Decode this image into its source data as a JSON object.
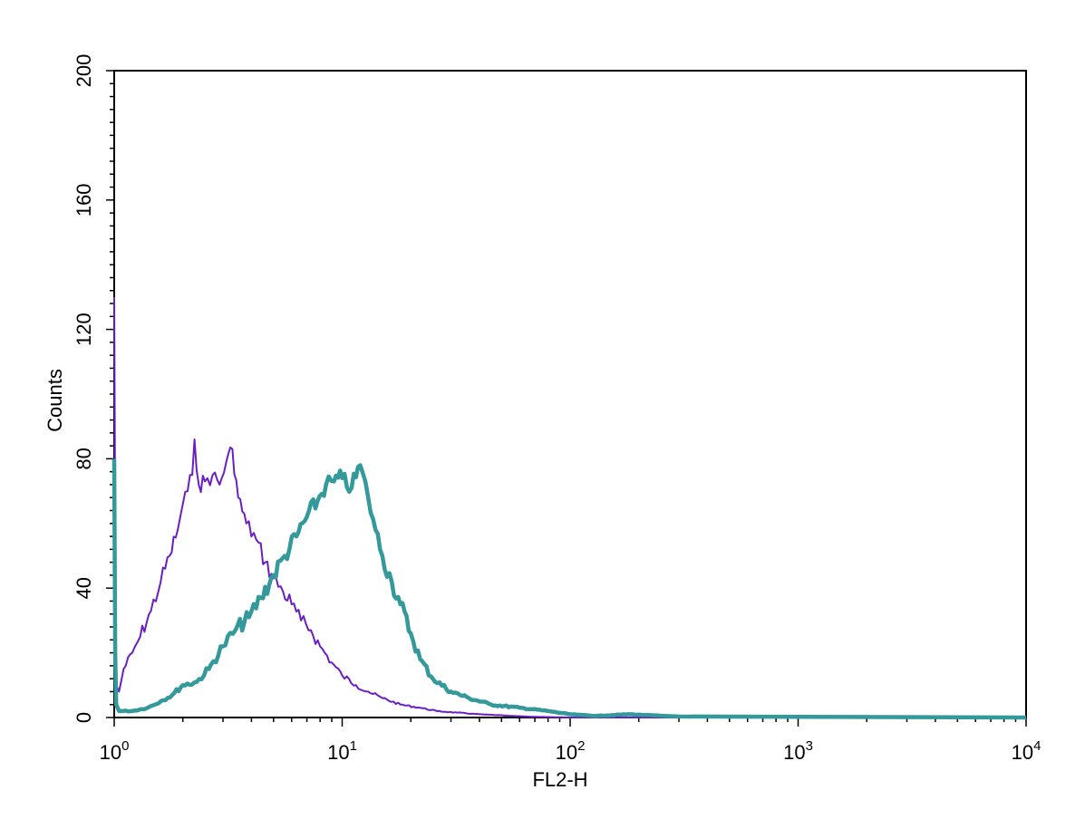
{
  "chart_data": {
    "type": "line",
    "title": "",
    "xlabel": "FL2-H",
    "ylabel": "Counts",
    "xscale": "log",
    "xlim": [
      1,
      10000
    ],
    "ylim": [
      0,
      200
    ],
    "grid": false,
    "x_ticks": [
      {
        "value": 1,
        "base": "10",
        "exp": "0"
      },
      {
        "value": 10,
        "base": "10",
        "exp": "1"
      },
      {
        "value": 100,
        "base": "10",
        "exp": "2"
      },
      {
        "value": 1000,
        "base": "10",
        "exp": "3"
      },
      {
        "value": 10000,
        "base": "10",
        "exp": "4"
      }
    ],
    "y_ticks": [
      {
        "value": 0,
        "label": "0"
      },
      {
        "value": 40,
        "label": "40"
      },
      {
        "value": 80,
        "label": "80"
      },
      {
        "value": 120,
        "label": "120"
      },
      {
        "value": 160,
        "label": "160"
      },
      {
        "value": 200,
        "label": "200"
      }
    ],
    "series": [
      {
        "color": "#6a1fc4",
        "stroke": "thin",
        "x": [
          1.0,
          1.01,
          1.02,
          1.05,
          1.1,
          1.2,
          1.3,
          1.45,
          1.6,
          1.75,
          1.9,
          2.0,
          2.1,
          2.2,
          2.25,
          2.35,
          2.5,
          2.7,
          2.9,
          3.1,
          3.3,
          3.5,
          3.8,
          4.2,
          4.6,
          5.0,
          5.5,
          6.0,
          6.6,
          7.3,
          8.0,
          9.0,
          10.0,
          11.5,
          13.0,
          15.0,
          18.0,
          22.0,
          26.0,
          32.0,
          40.0,
          55.0,
          70.0,
          100.0,
          10000.0
        ],
        "y": [
          130,
          60,
          10,
          8,
          15,
          20,
          25,
          33,
          42,
          50,
          58,
          66,
          70,
          75,
          86,
          72,
          73,
          75,
          72,
          79,
          83,
          68,
          60,
          55,
          48,
          43,
          39,
          35,
          30,
          27,
          22,
          17,
          13,
          10,
          8,
          6,
          4,
          3,
          2,
          1.5,
          1,
          0.5,
          0.2,
          0,
          0
        ]
      },
      {
        "color": "#33999a",
        "stroke": "thick",
        "x": [
          1.0,
          1.01,
          1.02,
          1.05,
          1.2,
          1.4,
          1.6,
          1.8,
          2.0,
          2.3,
          2.6,
          3.0,
          3.4,
          3.9,
          4.4,
          5.0,
          5.6,
          6.3,
          7.0,
          7.8,
          8.5,
          9.2,
          10.0,
          11.0,
          12.0,
          13.0,
          14.0,
          15.0,
          16.5,
          18.0,
          20.0,
          22.0,
          25.0,
          30.0,
          36.0,
          45.0,
          60.0,
          80.0,
          100.0,
          130.0,
          180.0,
          300.0,
          10000.0
        ],
        "y": [
          80,
          20,
          4,
          2,
          2,
          3,
          5,
          7,
          10,
          11,
          15,
          22,
          27,
          31,
          37,
          44,
          50,
          56,
          62,
          67,
          72,
          73,
          74,
          71,
          78,
          68,
          58,
          50,
          42,
          35,
          26,
          18,
          12,
          8,
          6,
          4,
          3,
          2,
          1,
          0.5,
          1,
          0.3,
          0
        ]
      }
    ]
  }
}
